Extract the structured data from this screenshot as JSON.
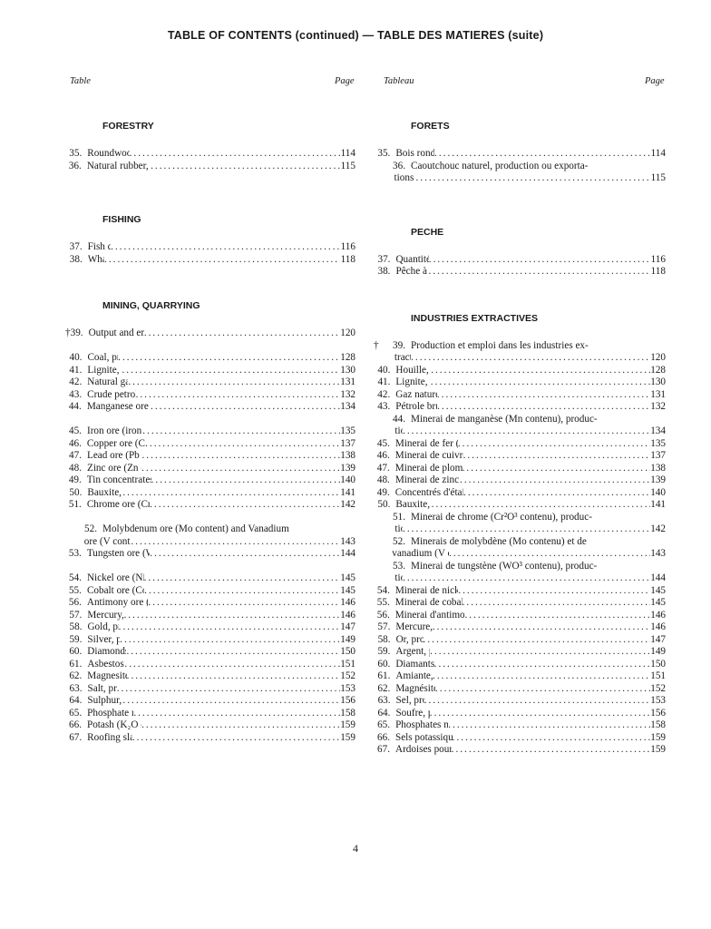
{
  "title": "TABLE OF CONTENTS (continued) — TABLE DES MATIERES (suite)",
  "headers": {
    "table": "Table",
    "page_left": "Page",
    "tableau": "Tableau",
    "page_right": "Page"
  },
  "left": [
    {
      "title": "FORESTRY",
      "groups": [
        [
          {
            "num": "35.",
            "lines": [
              "Roundwood, production"
            ],
            "page": "114"
          },
          {
            "num": "36.",
            "lines": [
              "Natural rubber, production or net exports"
            ],
            "page": "115"
          }
        ]
      ]
    },
    {
      "title": "FISHING",
      "groups": [
        [
          {
            "num": "37.",
            "lines": [
              "Fish catches"
            ],
            "page": "116"
          },
          {
            "num": "38.",
            "lines": [
              "Whaling"
            ],
            "page": "118"
          }
        ]
      ]
    },
    {
      "title": "MINING, QUARRYING",
      "groups": [
        [
          {
            "dagger": "†",
            "num": "39.",
            "lines": [
              "Output and employment in mining"
            ],
            "page": "120"
          }
        ],
        [
          {
            "num": "40.",
            "lines": [
              "Coal, production"
            ],
            "page": "128"
          },
          {
            "num": "41.",
            "lines": [
              "Lignite, production"
            ],
            "page": "130"
          },
          {
            "num": "42.",
            "lines": [
              "Natural gas, production"
            ],
            "page": "131"
          },
          {
            "num": "43.",
            "lines": [
              "Crude petroleum, production"
            ],
            "page": "132"
          },
          {
            "num": "44.",
            "lines": [
              "Manganese ore (Mn content), production"
            ],
            "page": "134"
          }
        ],
        [
          {
            "num": "45.",
            "lines": [
              "Iron ore (iron content), production"
            ],
            "page": "135"
          },
          {
            "num": "46.",
            "lines": [
              "Copper ore (Cu content), production"
            ],
            "page": "137"
          },
          {
            "num": "47.",
            "lines": [
              "Lead ore (Pb content), production"
            ],
            "page": "138"
          },
          {
            "num": "48.",
            "lines": [
              "Zinc ore (Zn content), production"
            ],
            "page": "139"
          },
          {
            "num": "49.",
            "lines": [
              "Tin concentrates (Sn content), production"
            ],
            "page": "140"
          },
          {
            "num": "50.",
            "lines": [
              "Bauxite, production"
            ],
            "page": "141"
          },
          {
            "num": "51.",
            "lines": [
              "Chrome ore (Cr₂O₃ content), production"
            ],
            "page": "142"
          }
        ],
        [
          {
            "num": "52.",
            "lines": [
              "Molybdenum ore (Mo content) and Vanadium",
              "ore (V content), production"
            ],
            "page": "143"
          },
          {
            "num": "53.",
            "lines": [
              "Tungsten ore (WO₃ content), production"
            ],
            "page": "144"
          }
        ],
        [
          {
            "num": "54.",
            "lines": [
              "Nickel ore (Ni content), production"
            ],
            "page": "145"
          },
          {
            "num": "55.",
            "lines": [
              "Cobalt ore (Co content), production"
            ],
            "page": "145"
          },
          {
            "num": "56.",
            "lines": [
              "Antimony ore (Sb content), production"
            ],
            "page": "146"
          },
          {
            "num": "57.",
            "lines": [
              "Mercury, production"
            ],
            "page": "146"
          },
          {
            "num": "58.",
            "lines": [
              "Gold, production"
            ],
            "page": "147"
          },
          {
            "num": "59.",
            "lines": [
              "Silver, production"
            ],
            "page": "149"
          },
          {
            "num": "60.",
            "lines": [
              "Diamonds, production"
            ],
            "page": "150"
          },
          {
            "num": "61.",
            "lines": [
              "Asbestos, production"
            ],
            "page": "151"
          },
          {
            "num": "62.",
            "lines": [
              "Magnesite, production"
            ],
            "page": "152"
          },
          {
            "num": "63.",
            "lines": [
              "Salt, production"
            ],
            "page": "153"
          },
          {
            "num": "64.",
            "lines": [
              "Sulphur, production"
            ],
            "page": "156"
          },
          {
            "num": "65.",
            "lines": [
              "Phosphate rock, production"
            ],
            "page": "158"
          },
          {
            "num": "66.",
            "lines": [
              "Potash (K₂O content), production"
            ],
            "page": "159"
          },
          {
            "num": "67.",
            "lines": [
              "Roofing slates, production"
            ],
            "page": "159"
          }
        ]
      ]
    }
  ],
  "right": [
    {
      "title": "FORETS",
      "groups": [
        [
          {
            "num": "35.",
            "lines": [
              "Bois rond, production"
            ],
            "page": "114"
          },
          {
            "num": "36.",
            "lines": [
              "Caoutchouc naturel, production ou exporta-",
              "tions nettes"
            ],
            "page": "115"
          }
        ]
      ]
    },
    {
      "title": "PECHE",
      "groups": [
        [
          {
            "num": "37.",
            "lines": [
              "Quantités pêchées"
            ],
            "page": "116"
          },
          {
            "num": "38.",
            "lines": [
              "Pêche à la baleine"
            ],
            "page": "118"
          }
        ]
      ]
    },
    {
      "title": "INDUSTRIES EXTRACTIVES",
      "groups": [
        [
          {
            "dagger": "†",
            "num": "39.",
            "lines": [
              "Production et emploi dans les industries ex-",
              "tractives"
            ],
            "page": "120"
          },
          {
            "num": "40.",
            "lines": [
              "Houille, production"
            ],
            "page": "128"
          },
          {
            "num": "41.",
            "lines": [
              "Lignite, production"
            ],
            "page": "130"
          },
          {
            "num": "42.",
            "lines": [
              "Gaz naturel, production"
            ],
            "page": "131"
          },
          {
            "num": "43.",
            "lines": [
              "Pétrole brut, production"
            ],
            "page": "132"
          },
          {
            "num": "44.",
            "lines": [
              "Minerai de manganèse (Mn contenu), produc-",
              "tion"
            ],
            "page": "134"
          },
          {
            "num": "45.",
            "lines": [
              "Minerai de fer (Fe contenu), production"
            ],
            "page": "135"
          },
          {
            "num": "46.",
            "lines": [
              "Minerai de cuivre (Cu contenu), production."
            ],
            "page": "137"
          },
          {
            "num": "47.",
            "lines": [
              "Minerai de plomb (Pb contenu), production"
            ],
            "page": "138"
          },
          {
            "num": "48.",
            "lines": [
              "Minerai de zinc (Zn contenu), production"
            ],
            "page": "139"
          },
          {
            "num": "49.",
            "lines": [
              "Concentrés d'étain (Sn contenu), production."
            ],
            "page": "140"
          },
          {
            "num": "50.",
            "lines": [
              "Bauxite, production"
            ],
            "page": "141"
          },
          {
            "num": "51.",
            "lines": [
              "Minerai de chrome (Cr²O³ contenu), produc-",
              "tion"
            ],
            "page": "142"
          },
          {
            "num": "52.",
            "lines": [
              "Minerais de molybdène (Mo contenu) et de",
              "vanadium (V contenu), production"
            ],
            "page": "143"
          },
          {
            "num": "53.",
            "lines": [
              "Minerai de tungstène (WO³ contenu), produc-",
              "tion"
            ],
            "page": "144"
          },
          {
            "num": "54.",
            "lines": [
              "Minerai de nickel (Ni cont.), production"
            ],
            "page": "145"
          },
          {
            "num": "55.",
            "lines": [
              "Minerai de cobalt (Co contenu), production"
            ],
            "page": "145"
          },
          {
            "num": "56.",
            "lines": [
              "Minerai d'antimoine (Sb contenu), production"
            ],
            "page": "146"
          },
          {
            "num": "57.",
            "lines": [
              "Mercure, production"
            ],
            "page": "146"
          },
          {
            "num": "58.",
            "lines": [
              "Or, production"
            ],
            "page": "147"
          },
          {
            "num": "59.",
            "lines": [
              "Argent, production"
            ],
            "page": "149"
          },
          {
            "num": "60.",
            "lines": [
              "Diamants, production"
            ],
            "page": "150"
          },
          {
            "num": "61.",
            "lines": [
              "Amiante, production"
            ],
            "page": "151"
          },
          {
            "num": "62.",
            "lines": [
              "Magnésite, production"
            ],
            "page": "152"
          },
          {
            "num": "63.",
            "lines": [
              "Sel, production"
            ],
            "page": "153"
          },
          {
            "num": "64.",
            "lines": [
              "Soufre, production"
            ],
            "page": "156"
          },
          {
            "num": "65.",
            "lines": [
              "Phosphates naturels, production"
            ],
            "page": "158"
          },
          {
            "num": "66.",
            "lines": [
              "Sels potassiques (K²O), production"
            ],
            "page": "159"
          },
          {
            "num": "67.",
            "lines": [
              "Ardoises pour toitures, production"
            ],
            "page": "159"
          }
        ]
      ]
    }
  ],
  "page_number": "4"
}
